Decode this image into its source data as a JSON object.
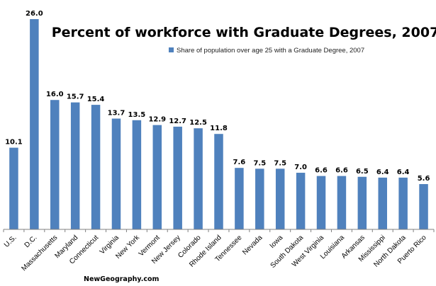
{
  "chart_data": {
    "type": "bar",
    "title": "Percent of workforce with Graduate Degrees, 2007",
    "legend": {
      "label": "Share of population over age 25 with a Graduate Degree, 2007",
      "placement": "top-right"
    },
    "categories": [
      "U.S.",
      "D.C.",
      "Massachusetts",
      "Maryland",
      "Connecticut",
      "Virginia",
      "New York",
      "Vermont",
      "New Jersey",
      "Colorado",
      "Rhode Island",
      "Tennessee",
      "Nevada",
      "Iowa",
      "South Dakota",
      "West Virginia",
      "Louisiana",
      "Arkansas",
      "Mississippi",
      "North Dakota",
      "Puerto Rico"
    ],
    "series": [
      {
        "name": "Share of population over age 25 with a Graduate Degree, 2007",
        "values": [
          10.1,
          26.0,
          16.0,
          15.7,
          15.4,
          13.7,
          13.5,
          12.9,
          12.7,
          12.5,
          11.8,
          7.6,
          7.5,
          7.5,
          7.0,
          6.6,
          6.6,
          6.5,
          6.4,
          6.4,
          5.6
        ],
        "labels": [
          "10.1",
          "26.0",
          "16.0",
          "15.7",
          "15.4",
          "13.7",
          "13.5",
          "12.9",
          "12.7",
          "12.5",
          "11.8",
          "7.6",
          "7.5",
          "7.5",
          "7.0",
          "6.6",
          "6.6",
          "6.5",
          "6.4",
          "6.4",
          "5.6"
        ]
      }
    ],
    "ylim": [
      0,
      26
    ],
    "xlabel": "",
    "ylabel": "",
    "grid": false,
    "bar_color": "#4F81BD",
    "axis_color": "#808080"
  },
  "footer": {
    "source": "NewGeography.com"
  }
}
